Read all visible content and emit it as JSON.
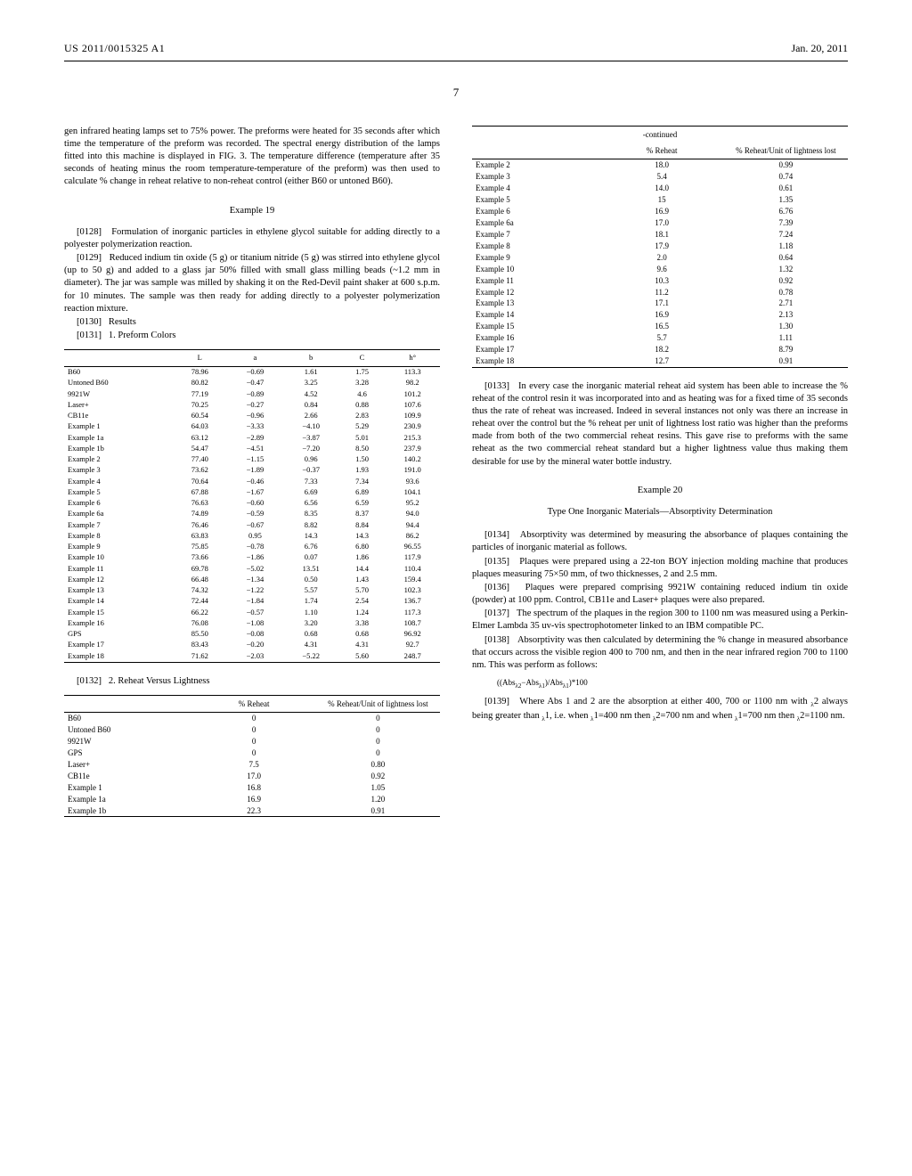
{
  "header": {
    "pubnum": "US 2011/0015325 A1",
    "date": "Jan. 20, 2011",
    "pagenum": "7"
  },
  "left": {
    "intro": "gen infrared heating lamps set to 75% power. The preforms were heated for 35 seconds after which time the temperature of the preform was recorded. The spectral energy distribution of the lamps fitted into this machine is displayed in FIG. 3. The temperature difference (temperature after 35 seconds of heating minus the room temperature-temperature of the preform) was then used to calculate % change in reheat relative to non-reheat control (either B60 or untoned B60).",
    "ex19_head": "Example 19",
    "p0128": "Formulation of inorganic particles in ethylene glycol suitable for adding directly to a polyester polymerization reaction.",
    "p0129": "Reduced indium tin oxide (5 g) or titanium nitride (5 g) was stirred into ethylene glycol (up to 50 g) and added to a glass jar 50% filled with small glass milling beads (~1.2 mm in diameter). The jar was sample was milled by shaking it on the Red-Devil paint shaker at 600 s.p.m. for 10 minutes. The sample was then ready for adding directly to a polyester polymerization reaction mixture.",
    "p0130": "Results",
    "p0131": "1. Preform Colors",
    "preform_table": {
      "cols": [
        "",
        "L",
        "a",
        "b",
        "C",
        "h°"
      ],
      "rows": [
        [
          "B60",
          "78.96",
          "−0.69",
          "1.61",
          "1.75",
          "113.3"
        ],
        [
          "Untoned B60",
          "80.82",
          "−0.47",
          "3.25",
          "3.28",
          "98.2"
        ],
        [
          "9921W",
          "77.19",
          "−0.89",
          "4.52",
          "4.6",
          "101.2"
        ],
        [
          "Laser+",
          "70.25",
          "−0.27",
          "0.84",
          "0.88",
          "107.6"
        ],
        [
          "CB11e",
          "60.54",
          "−0.96",
          "2.66",
          "2.83",
          "109.9"
        ],
        [
          "Example 1",
          "64.03",
          "−3.33",
          "−4.10",
          "5.29",
          "230.9"
        ],
        [
          "Example 1a",
          "63.12",
          "−2.89",
          "−3.87",
          "5.01",
          "215.3"
        ],
        [
          "Example 1b",
          "54.47",
          "−4.51",
          "−7.20",
          "8.50",
          "237.9"
        ],
        [
          "Example 2",
          "77.40",
          "−1.15",
          "0.96",
          "1.50",
          "140.2"
        ],
        [
          "Example 3",
          "73.62",
          "−1.89",
          "−0.37",
          "1.93",
          "191.0"
        ],
        [
          "Example 4",
          "70.64",
          "−0.46",
          "7.33",
          "7.34",
          "93.6"
        ],
        [
          "Example 5",
          "67.88",
          "−1.67",
          "6.69",
          "6.89",
          "104.1"
        ],
        [
          "Example 6",
          "76.63",
          "−0.60",
          "6.56",
          "6.59",
          "95.2"
        ],
        [
          "Example 6a",
          "74.89",
          "−0.59",
          "8.35",
          "8.37",
          "94.0"
        ],
        [
          "Example 7",
          "76.46",
          "−0.67",
          "8.82",
          "8.84",
          "94.4"
        ],
        [
          "Example 8",
          "63.83",
          "0.95",
          "14.3",
          "14.3",
          "86.2"
        ],
        [
          "Example 9",
          "75.85",
          "−0.78",
          "6.76",
          "6.80",
          "96.55"
        ],
        [
          "Example 10",
          "73.66",
          "−1.86",
          "0.07",
          "1.86",
          "117.9"
        ],
        [
          "Example 11",
          "69.78",
          "−5.02",
          "13.51",
          "14.4",
          "110.4"
        ],
        [
          "Example 12",
          "66.48",
          "−1.34",
          "0.50",
          "1.43",
          "159.4"
        ],
        [
          "Example 13",
          "74.32",
          "−1.22",
          "5.57",
          "5.70",
          "102.3"
        ],
        [
          "Example 14",
          "72.44",
          "−1.84",
          "1.74",
          "2.54",
          "136.7"
        ],
        [
          "Example 15",
          "66.22",
          "−0.57",
          "1.10",
          "1.24",
          "117.3"
        ],
        [
          "Example 16",
          "76.08",
          "−1.08",
          "3.20",
          "3.38",
          "108.7"
        ],
        [
          "GPS",
          "85.50",
          "−0.08",
          "0.68",
          "0.68",
          "96.92"
        ],
        [
          "Example 17",
          "83.43",
          "−0.20",
          "4.31",
          "4.31",
          "92.7"
        ],
        [
          "Example 18",
          "71.62",
          "−2.03",
          "−5.22",
          "5.60",
          "248.7"
        ]
      ]
    },
    "p0132": "2. Reheat Versus Lightness",
    "reheat_table": {
      "cols": [
        "",
        "% Reheat",
        "% Reheat/Unit of lightness lost"
      ],
      "rows": [
        [
          "B60",
          "0",
          "0"
        ],
        [
          "Untoned B60",
          "0",
          "0"
        ],
        [
          "9921W",
          "0",
          "0"
        ],
        [
          "GPS",
          "0",
          "0"
        ],
        [
          "Laser+",
          "7.5",
          "0.80"
        ],
        [
          "CB11e",
          "17.0",
          "0.92"
        ],
        [
          "Example 1",
          "16.8",
          "1.05"
        ],
        [
          "Example 1a",
          "16.9",
          "1.20"
        ],
        [
          "Example 1b",
          "22.3",
          "0.91"
        ]
      ]
    }
  },
  "right": {
    "cont": "-continued",
    "reheat_cont": {
      "cols": [
        "",
        "% Reheat",
        "% Reheat/Unit of lightness lost"
      ],
      "rows": [
        [
          "Example 2",
          "18.0",
          "0.99"
        ],
        [
          "Example 3",
          "5.4",
          "0.74"
        ],
        [
          "Example 4",
          "14.0",
          "0.61"
        ],
        [
          "Example 5",
          "15",
          "1.35"
        ],
        [
          "Example 6",
          "16.9",
          "6.76"
        ],
        [
          "Example 6a",
          "17.0",
          "7.39"
        ],
        [
          "Example 7",
          "18.1",
          "7.24"
        ],
        [
          "Example 8",
          "17.9",
          "1.18"
        ],
        [
          "Example 9",
          "2.0",
          "0.64"
        ],
        [
          "Example 10",
          "9.6",
          "1.32"
        ],
        [
          "Example 11",
          "10.3",
          "0.92"
        ],
        [
          "Example 12",
          "11.2",
          "0.78"
        ],
        [
          "Example 13",
          "17.1",
          "2.71"
        ],
        [
          "Example 14",
          "16.9",
          "2.13"
        ],
        [
          "Example 15",
          "16.5",
          "1.30"
        ],
        [
          "Example 16",
          "5.7",
          "1.11"
        ],
        [
          "Example 17",
          "18.2",
          "8.79"
        ],
        [
          "Example 18",
          "12.7",
          "0.91"
        ]
      ]
    },
    "p0133": "In every case the inorganic material reheat aid system has been able to increase the % reheat of the control resin it was incorporated into and as heating was for a fixed time of 35 seconds thus the rate of reheat was increased. Indeed in several instances not only was there an increase in reheat over the control but the % reheat per unit of lightness lost ratio was higher than the preforms made from both of the two commercial reheat resins. This gave rise to preforms with the same reheat as the two commercial reheat standard but a higher lightness value thus making them desirable for use by the mineral water bottle industry.",
    "ex20_head": "Example 20",
    "ex20_sub": "Type One Inorganic Materials—Absorptivity Determination",
    "p0134": "Absorptivity was determined by measuring the absorbance of plaques containing the particles of inorganic material as follows.",
    "p0135": "Plaques were prepared using a 22-ton BOY injection molding machine that produces plaques measuring 75×50 mm, of two thicknesses, 2 and 2.5 mm.",
    "p0136": "Plaques were prepared comprising 9921W containing reduced indium tin oxide (powder) at 100 ppm. Control, CB11e and Laser+ plaques were also prepared.",
    "p0137": "The spectrum of the plaques in the region 300 to 1100 nm was measured using a Perkin-Elmer Lambda 35 uv-vis spectrophotometer linked to an IBM compatible PC.",
    "p0138": "Absorptivity was then calculated by determining the % change in measured absorbance that occurs across the visible region 400 to 700 nm, and then in the near infrared region 700 to 1100 nm. This was perform as follows:",
    "formula": "((Absλ2−Absλ1)/Absλ1)*100",
    "p0139_a": "Where Abs 1 and 2 are the absorption at either 400, 700 or 1100 nm with ",
    "p0139_b": "2 always being greater than ",
    "p0139_c": "1, i.e. when ",
    "p0139_d": "1=400 nm then ",
    "p0139_e": "2=700 nm and when ",
    "p0139_f": "1=700 nm then ",
    "p0139_g": "2=1100 nm."
  }
}
